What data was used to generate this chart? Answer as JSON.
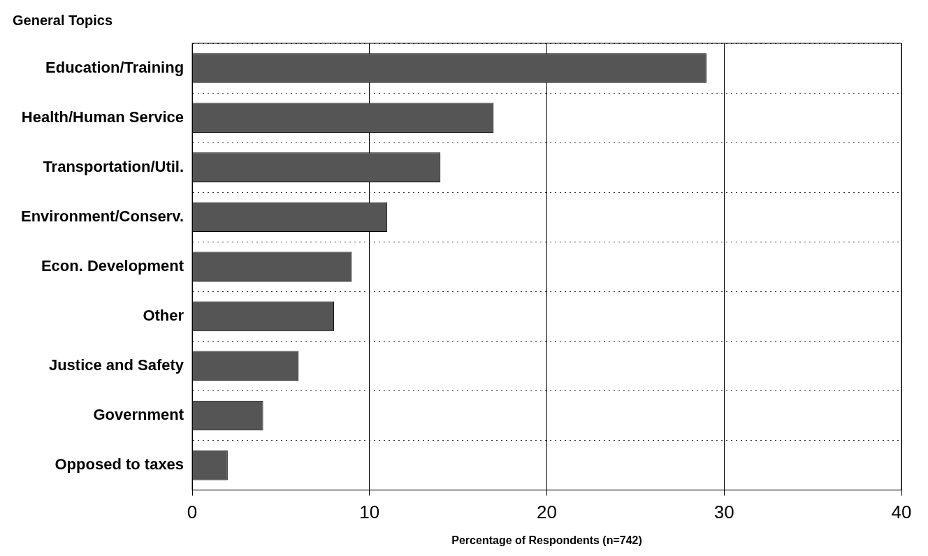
{
  "chart_data": {
    "type": "bar",
    "orientation": "horizontal",
    "title": "General Topics",
    "xlabel": "Percentage of Respondents (n=742)",
    "categories": [
      "Education/Training",
      "Health/Human Service",
      "Transportation/Util.",
      "Environment/Conserv.",
      "Econ. Development",
      "Other",
      "Justice and Safety",
      "Government",
      "Opposed to taxes"
    ],
    "values": [
      29,
      17,
      14,
      11,
      9,
      8,
      6,
      4,
      2
    ],
    "color": "#555555",
    "xlim": [
      0,
      40
    ],
    "xticks": [
      0,
      10,
      20,
      30,
      40
    ],
    "grid": true,
    "legend": false
  }
}
